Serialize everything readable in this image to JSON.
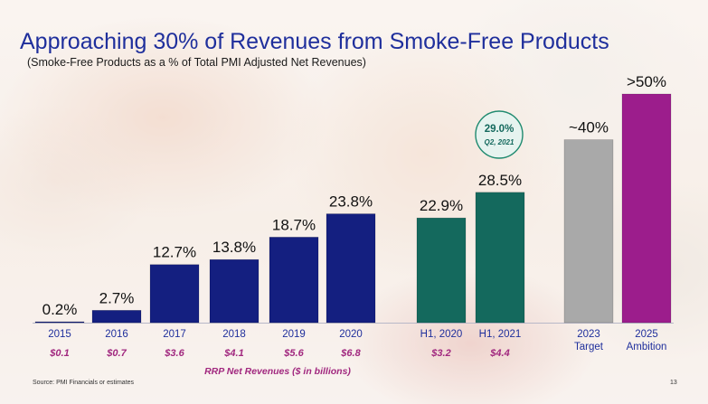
{
  "title": "Approaching 30% of Revenues from Smoke-Free Products",
  "subtitle": "(Smoke-Free Products as a % of Total PMI Adjusted Net Revenues)",
  "source": "Source: PMI Financials or estimates",
  "page_number": "13",
  "rrp_axis_label": "RRP Net Revenues ($ in billions)",
  "callout": {
    "value": "29.0%",
    "period": "Q2, 2021"
  },
  "colors": {
    "navy": "#141f80",
    "teal": "#14695d",
    "gray": "#a9a9a9",
    "magenta": "#9c1d8c",
    "title": "#1f2f9c",
    "category_label": "#1f2f9c",
    "rrp_label": "#a1287f"
  },
  "chart_data": {
    "type": "bar",
    "title": "Approaching 30% of Revenues from Smoke-Free Products",
    "ylabel": "",
    "unit": "%",
    "ylim": [
      0,
      50
    ],
    "grid": false,
    "legend": "none",
    "groups": [
      {
        "name": "annual",
        "color": "navy",
        "bars": [
          {
            "category": "2015",
            "value": 0.2,
            "label": "0.2%",
            "rrp": "$0.1"
          },
          {
            "category": "2016",
            "value": 2.7,
            "label": "2.7%",
            "rrp": "$0.7"
          },
          {
            "category": "2017",
            "value": 12.7,
            "label": "12.7%",
            "rrp": "$3.6"
          },
          {
            "category": "2018",
            "value": 13.8,
            "label": "13.8%",
            "rrp": "$4.1"
          },
          {
            "category": "2019",
            "value": 18.7,
            "label": "18.7%",
            "rrp": "$5.6"
          },
          {
            "category": "2020",
            "value": 23.8,
            "label": "23.8%",
            "rrp": "$6.8"
          }
        ]
      },
      {
        "name": "half-year",
        "color": "teal",
        "bars": [
          {
            "category": "H1, 2020",
            "value": 22.9,
            "label": "22.9%",
            "rrp": "$3.2"
          },
          {
            "category": "H1, 2021",
            "value": 28.5,
            "label": "28.5%",
            "rrp": "$4.4"
          }
        ]
      },
      {
        "name": "targets",
        "bars": [
          {
            "category": "2023",
            "category2": "Target",
            "value": 40,
            "label": "~40%",
            "color": "gray"
          },
          {
            "category": "2025",
            "category2": "Ambition",
            "value": 50,
            "label": ">50%",
            "color": "magenta"
          }
        ]
      }
    ]
  }
}
